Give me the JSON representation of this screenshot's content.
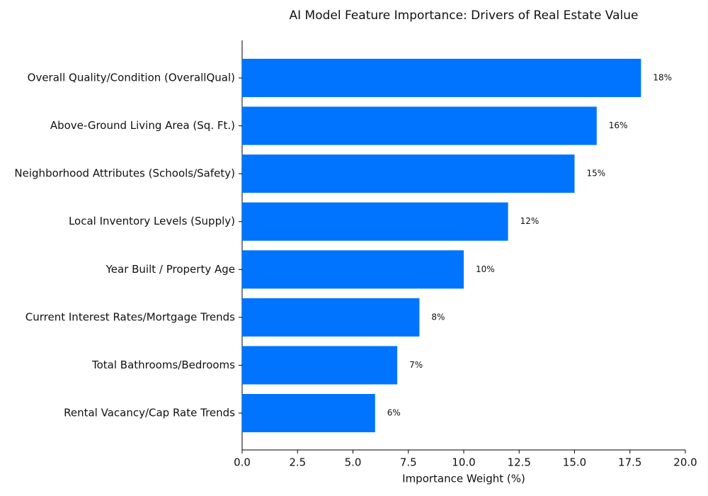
{
  "chart_data": {
    "type": "barh",
    "title": "AI Model Feature Importance: Drivers of Real Estate Value",
    "xlabel": "Importance Weight (%)",
    "categories": [
      "Overall Quality/Condition (OverallQual)",
      "Above-Ground Living Area (Sq. Ft.)",
      "Neighborhood Attributes (Schools/Safety)",
      "Local Inventory Levels (Supply)",
      "Year Built / Property Age",
      "Current Interest Rates/Mortgage Trends",
      "Total Bathrooms/Bedrooms",
      "Rental Vacancy/Cap Rate Trends"
    ],
    "values": [
      18,
      16,
      15,
      12,
      10,
      8,
      7,
      6
    ],
    "value_labels": [
      "18%",
      "16%",
      "15%",
      "12%",
      "10%",
      "8%",
      "7%",
      "6%"
    ],
    "color": "#0074ff",
    "xlim": [
      0,
      20
    ],
    "xticks": [
      {
        "value": 0,
        "label": "0.0"
      },
      2.5,
      {
        "value": 5,
        "label": "5.0"
      },
      7.5,
      {
        "value": 10,
        "label": "10.0"
      },
      12.5,
      {
        "value": 15,
        "label": "15.0"
      },
      17.5,
      {
        "value": 20,
        "label": "20.0"
      }
    ],
    "grid": false
  }
}
